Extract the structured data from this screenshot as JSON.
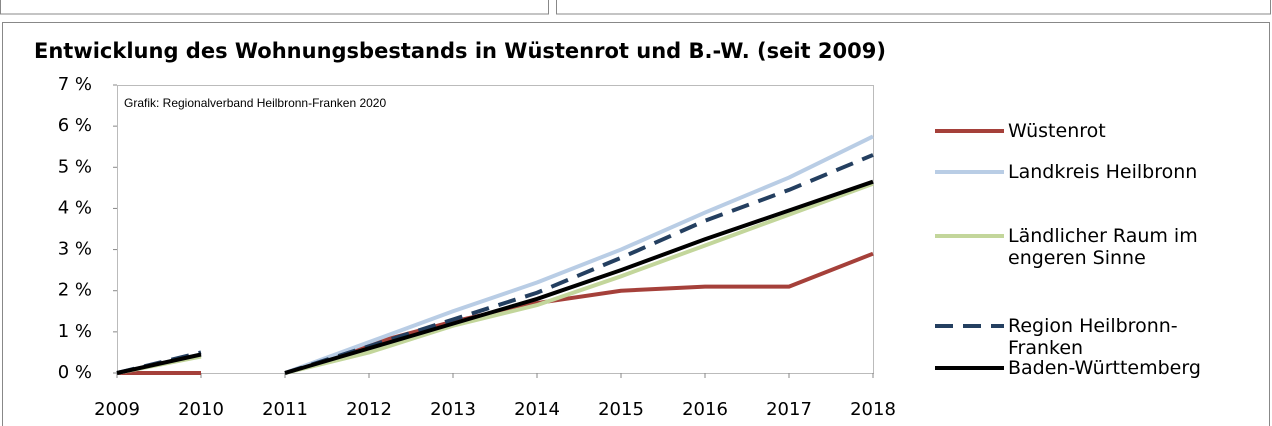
{
  "chart_data": {
    "type": "line",
    "title": "Entwicklung des Wohnungsbestands in Wüstenrot und B.-W. (seit 2009)",
    "annotation": "Grafik: Regionalverband Heilbronn-Franken 2020",
    "x": [
      2009,
      2010,
      null,
      2011,
      2012,
      2013,
      2014,
      2015,
      2016,
      2017,
      2018
    ],
    "xlim": [
      2009,
      2018
    ],
    "xticks": [
      2009,
      2010,
      2011,
      2012,
      2013,
      2014,
      2015,
      2016,
      2017,
      2018
    ],
    "ylim": [
      0,
      7
    ],
    "yticks": [
      {
        "value": 0,
        "label": "0 %"
      },
      {
        "value": 1,
        "label": "1 %"
      },
      {
        "value": 2,
        "label": "2 %"
      },
      {
        "value": 3,
        "label": "3 %"
      },
      {
        "value": 4,
        "label": "4 %"
      },
      {
        "value": 5,
        "label": "5 %"
      },
      {
        "value": 6,
        "label": "6 %"
      },
      {
        "value": 7,
        "label": "7 %"
      }
    ],
    "grid": false,
    "legend": "right",
    "series": [
      {
        "name": "Wüstenrot",
        "color": "#a5403a",
        "values": [
          0,
          0,
          null,
          0,
          0.7,
          1.25,
          1.7,
          2.0,
          2.1,
          2.1,
          2.9
        ]
      },
      {
        "name": "Landkreis Heilbronn",
        "color": "#b9cde5",
        "values": [
          0,
          0.45,
          null,
          0,
          0.75,
          1.5,
          2.2,
          3.0,
          3.9,
          4.75,
          5.75
        ]
      },
      {
        "name": "Ländlicher Raum im engeren Sinne",
        "color": "#c3d69b",
        "values": [
          0,
          0.4,
          null,
          0,
          0.5,
          1.15,
          1.65,
          2.35,
          3.1,
          3.85,
          4.6
        ]
      },
      {
        "name": "Region Heilbronn-Franken",
        "color": "#243f60",
        "dashed": true,
        "values": [
          0,
          0.5,
          null,
          0,
          0.65,
          1.3,
          1.95,
          2.8,
          3.7,
          4.45,
          5.3
        ]
      },
      {
        "name": "Baden-Württemberg",
        "color": "#000000",
        "values": [
          0,
          0.45,
          null,
          0,
          0.6,
          1.2,
          1.8,
          2.5,
          3.25,
          3.95,
          4.65
        ]
      }
    ]
  }
}
